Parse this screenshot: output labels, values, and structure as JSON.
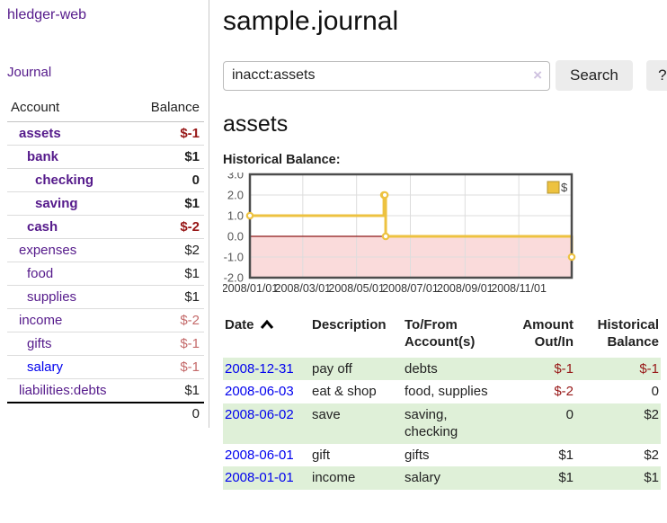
{
  "sidebar": {
    "brand": "hledger-web",
    "journal_label": "Journal",
    "accounts_table": {
      "headers": {
        "account": "Account",
        "balance": "Balance"
      },
      "rows": [
        {
          "name": "assets",
          "depth": 1,
          "balance": "$-1",
          "bold": true,
          "balance_class": "neg"
        },
        {
          "name": "bank",
          "depth": 2,
          "balance": "$1",
          "bold": true,
          "balance_class": ""
        },
        {
          "name": "checking",
          "depth": 3,
          "balance": "0",
          "bold": true,
          "balance_class": ""
        },
        {
          "name": "saving",
          "depth": 3,
          "balance": "$1",
          "bold": true,
          "balance_class": ""
        },
        {
          "name": "cash",
          "depth": 2,
          "balance": "$-2",
          "bold": true,
          "balance_class": "neg"
        },
        {
          "name": "expenses",
          "depth": 1,
          "balance": "$2",
          "bold": false,
          "balance_class": ""
        },
        {
          "name": "food",
          "depth": 2,
          "balance": "$1",
          "bold": false,
          "balance_class": ""
        },
        {
          "name": "supplies",
          "depth": 2,
          "balance": "$1",
          "bold": false,
          "balance_class": ""
        },
        {
          "name": "income",
          "depth": 1,
          "balance": "$-2",
          "bold": false,
          "balance_class": "neg-soft"
        },
        {
          "name": "gifts",
          "depth": 2,
          "balance": "$-1",
          "bold": false,
          "balance_class": "neg-soft"
        },
        {
          "name": "salary",
          "depth": 2,
          "balance": "$-1",
          "bold": false,
          "balance_class": "neg-soft",
          "unvisited": true
        },
        {
          "name": "liabilities:debts",
          "depth": 1,
          "balance": "$1",
          "bold": false,
          "balance_class": ""
        }
      ],
      "total": "0"
    }
  },
  "header": {
    "title": "sample.journal"
  },
  "search": {
    "value": "inacct:assets",
    "clear_icon": "×",
    "button_label": "Search",
    "help_label": "?"
  },
  "main": {
    "account_heading": "assets",
    "chart_label": "Historical Balance:"
  },
  "chart_data": {
    "type": "line",
    "step": true,
    "title": "Historical Balance:",
    "series": [
      {
        "name": "$",
        "color": "#edc240",
        "points": [
          [
            "2008-01-01",
            1
          ],
          [
            "2008-06-01",
            2
          ],
          [
            "2008-06-02",
            2
          ],
          [
            "2008-06-03",
            0
          ],
          [
            "2008-12-31",
            -1
          ]
        ]
      }
    ],
    "x_range": [
      "2008-01-01",
      "2008-12-31"
    ],
    "y_range": [
      -2,
      3
    ],
    "x_tick_labels": [
      "2008/01/01",
      "2008/03/01",
      "2008/05/01",
      "2008/07/01",
      "2008/09/01",
      "2008/11/01"
    ],
    "y_tick_labels": [
      "3.0",
      "2.0",
      "1.0",
      "0.0",
      "-1.0",
      "-2.0"
    ],
    "grid": true,
    "legend_position": "top-right",
    "colors": {
      "negative_fill": "#fadbdb",
      "zero_line": "#8c1717",
      "border": "#4c4c4c",
      "grid": "#dddddd",
      "tick_text": "#555555",
      "marker_fill": "#ffffff"
    }
  },
  "register_table": {
    "sort": {
      "column": "date",
      "direction": "ascending",
      "icon": "caret-up"
    },
    "headers": {
      "date": "Date",
      "description": "Description",
      "to_from": "To/From\nAccount(s)",
      "amount": "Amount\nOut/In",
      "balance": "Historical\nBalance"
    },
    "rows": [
      {
        "date": "2008-12-31",
        "description": "pay off",
        "to_from": "debts",
        "amount": "$-1",
        "balance": "$-1",
        "amount_class": "neg",
        "balance_class": "neg",
        "shaded": true
      },
      {
        "date": "2008-06-03",
        "description": "eat & shop",
        "to_from": "food, supplies",
        "amount": "$-2",
        "balance": "0",
        "amount_class": "neg",
        "balance_class": "",
        "shaded": false
      },
      {
        "date": "2008-06-02",
        "description": "save",
        "to_from": "saving,\nchecking",
        "amount": "0",
        "balance": "$2",
        "amount_class": "",
        "balance_class": "",
        "shaded": true
      },
      {
        "date": "2008-06-01",
        "description": "gift",
        "to_from": "gifts",
        "amount": "$1",
        "balance": "$2",
        "amount_class": "",
        "balance_class": "",
        "shaded": false
      },
      {
        "date": "2008-01-01",
        "description": "income",
        "to_from": "salary",
        "amount": "$1",
        "balance": "$1",
        "amount_class": "",
        "balance_class": "",
        "shaded": true
      }
    ]
  },
  "colors": {
    "link_purple": "#551a8b",
    "link_blue": "#0000ee",
    "negative_dark": "#971717",
    "negative_soft": "#c46a6a",
    "row_stripe_green": "#dff0d8",
    "button_bg": "#ececec",
    "series_yellow": "#edc240"
  }
}
